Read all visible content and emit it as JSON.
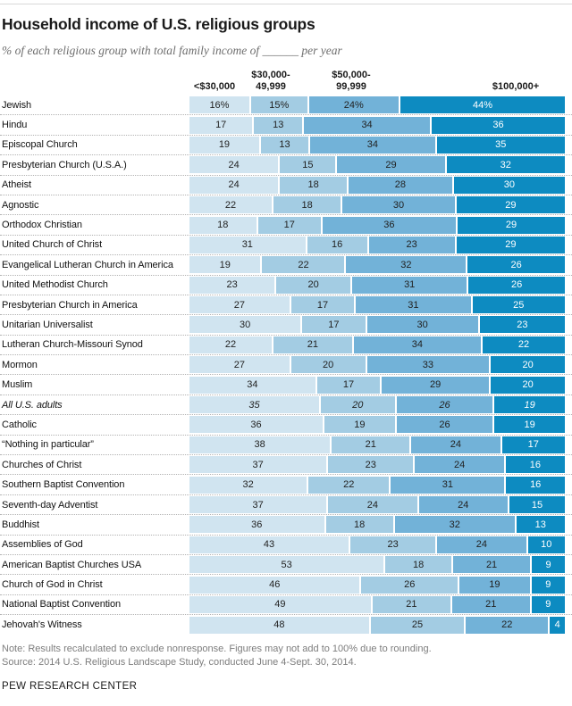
{
  "title": "Household income of U.S. religious groups",
  "subtitle": "% of each religious group with total family income of ______ per year",
  "note": "Note: Results recalculated to exclude nonresponse. Figures may not add to 100% due to rounding.",
  "source": "Source: 2014 U.S. Religious Landscape Study, conducted June 4-Sept. 30, 2014.",
  "branding": "PEW RESEARCH CENTER",
  "chart_data": {
    "type": "bar",
    "stacked": true,
    "orientation": "horizontal",
    "value_unit": "percent",
    "xlim": [
      0,
      100
    ],
    "grid": false,
    "legend_position": "column-headers-top",
    "colors": [
      "#d0e4f0",
      "#a3cce3",
      "#72b2d8",
      "#0d8bc1"
    ],
    "columns": [
      {
        "line1": "<$30,000",
        "line2": ""
      },
      {
        "line1": "$30,000-",
        "line2": "49,999"
      },
      {
        "line1": "$50,000-",
        "line2": "99,999"
      },
      {
        "line1": "$100,000+",
        "line2": ""
      }
    ],
    "series_names": [
      "<$30,000",
      "$30,000-49,999",
      "$50,000-99,999",
      "$100,000+"
    ],
    "first_row_suffix": "%",
    "rows": [
      {
        "label": "Jewish",
        "values": [
          16,
          15,
          24,
          44
        ]
      },
      {
        "label": "Hindu",
        "values": [
          17,
          13,
          34,
          36
        ]
      },
      {
        "label": "Episcopal Church",
        "values": [
          19,
          13,
          34,
          35
        ]
      },
      {
        "label": "Presbyterian Church (U.S.A.)",
        "values": [
          24,
          15,
          29,
          32
        ]
      },
      {
        "label": "Atheist",
        "values": [
          24,
          18,
          28,
          30
        ]
      },
      {
        "label": "Agnostic",
        "values": [
          22,
          18,
          30,
          29
        ]
      },
      {
        "label": "Orthodox Christian",
        "values": [
          18,
          17,
          36,
          29
        ]
      },
      {
        "label": "United Church of Christ",
        "values": [
          31,
          16,
          23,
          29
        ]
      },
      {
        "label": "Evangelical Lutheran Church in America",
        "values": [
          19,
          22,
          32,
          26
        ]
      },
      {
        "label": "United Methodist Church",
        "values": [
          23,
          20,
          31,
          26
        ]
      },
      {
        "label": "Presbyterian Church in America",
        "values": [
          27,
          17,
          31,
          25
        ]
      },
      {
        "label": "Unitarian Universalist",
        "values": [
          30,
          17,
          30,
          23
        ]
      },
      {
        "label": "Lutheran Church-Missouri Synod",
        "values": [
          22,
          21,
          34,
          22
        ]
      },
      {
        "label": "Mormon",
        "values": [
          27,
          20,
          33,
          20
        ]
      },
      {
        "label": "Muslim",
        "values": [
          34,
          17,
          29,
          20
        ]
      },
      {
        "label": "All U.S. adults",
        "values": [
          35,
          20,
          26,
          19
        ],
        "italic": true
      },
      {
        "label": "Catholic",
        "values": [
          36,
          19,
          26,
          19
        ]
      },
      {
        "label": "“Nothing in particular”",
        "values": [
          38,
          21,
          24,
          17
        ]
      },
      {
        "label": "Churches of Christ",
        "values": [
          37,
          23,
          24,
          16
        ]
      },
      {
        "label": "Southern Baptist Convention",
        "values": [
          32,
          22,
          31,
          16
        ]
      },
      {
        "label": "Seventh-day Adventist",
        "values": [
          37,
          24,
          24,
          15
        ]
      },
      {
        "label": "Buddhist",
        "values": [
          36,
          18,
          32,
          13
        ]
      },
      {
        "label": "Assemblies of God",
        "values": [
          43,
          23,
          24,
          10
        ]
      },
      {
        "label": "American Baptist Churches USA",
        "values": [
          53,
          18,
          21,
          9
        ]
      },
      {
        "label": "Church of God in Christ",
        "values": [
          46,
          26,
          19,
          9
        ]
      },
      {
        "label": "National Baptist Convention",
        "values": [
          49,
          21,
          21,
          9
        ]
      },
      {
        "label": "Jehovah's Witness",
        "values": [
          48,
          25,
          22,
          4
        ]
      }
    ]
  }
}
